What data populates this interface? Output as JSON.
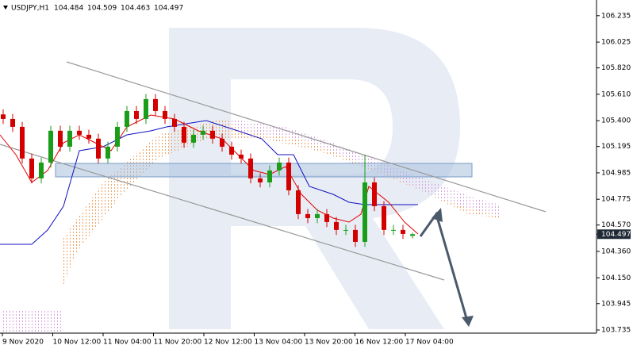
{
  "chart_data": {
    "type": "candlestick",
    "symbol": "USDJPY,H1",
    "open": [
      105.45,
      105.414,
      105.351,
      105.099,
      104.941,
      105.067,
      105.32,
      105.193,
      105.32,
      105.288,
      105.257,
      105.099,
      105.193,
      105.351,
      105.477,
      105.414,
      105.572,
      105.477,
      105.414,
      105.351,
      105.225,
      105.288,
      105.32,
      105.257,
      105.193,
      105.13,
      105.099,
      104.941,
      104.909,
      105.004,
      105.067,
      104.846,
      104.657,
      104.625,
      104.657,
      104.594,
      104.531,
      104.531,
      104.436,
      104.909,
      104.72,
      104.531,
      104.531,
      104.484
    ],
    "high": [
      105.49,
      105.454,
      105.391,
      105.139,
      105.107,
      105.36,
      105.36,
      105.36,
      105.36,
      105.328,
      105.297,
      105.233,
      105.391,
      105.517,
      105.517,
      105.612,
      105.612,
      105.517,
      105.454,
      105.391,
      105.328,
      105.36,
      105.36,
      105.297,
      105.233,
      105.17,
      105.139,
      104.981,
      105.044,
      105.107,
      105.107,
      104.886,
      104.697,
      104.697,
      104.697,
      104.634,
      104.571,
      104.571,
      105.13,
      104.949,
      104.76,
      104.571,
      104.571,
      104.509
    ],
    "low": [
      105.374,
      105.311,
      105.059,
      104.901,
      104.901,
      105.027,
      105.153,
      105.153,
      105.248,
      105.217,
      105.059,
      105.059,
      105.153,
      105.311,
      105.374,
      105.374,
      105.437,
      105.374,
      105.311,
      105.185,
      105.185,
      105.248,
      105.217,
      105.153,
      105.09,
      105.059,
      104.901,
      104.869,
      104.869,
      104.964,
      104.806,
      104.617,
      104.585,
      104.585,
      104.554,
      104.491,
      104.491,
      104.396,
      104.396,
      104.68,
      104.491,
      104.491,
      104.459,
      104.463
    ],
    "close": [
      105.414,
      105.351,
      105.099,
      104.941,
      105.067,
      105.32,
      105.193,
      105.32,
      105.288,
      105.257,
      105.099,
      105.193,
      105.351,
      105.477,
      105.414,
      105.572,
      105.477,
      105.414,
      105.351,
      105.225,
      105.288,
      105.32,
      105.257,
      105.193,
      105.13,
      105.099,
      104.941,
      104.909,
      105.004,
      105.067,
      104.846,
      104.657,
      104.625,
      104.657,
      104.594,
      104.531,
      104.531,
      104.436,
      104.909,
      104.72,
      104.531,
      104.531,
      104.499,
      104.497
    ],
    "x_labels": [
      "9 Nov 2020",
      "10 Nov 12:00",
      "11 Nov 04:00",
      "11 Nov 20:00",
      "12 Nov 12:00",
      "13 Nov 04:00",
      "13 Nov 20:00",
      "16 Nov 12:00",
      "17 Nov 04:00"
    ],
    "ylim": [
      103.71,
      106.36
    ],
    "yticks": [
      106.235,
      106.025,
      {
        "value": 105.82,
        "label": "105.820"
      },
      {
        "value": 105.61,
        "label": "105.610"
      },
      {
        "value": 105.4,
        "label": "105.400"
      },
      105.195,
      104.985,
      104.775,
      {
        "value": 104.57,
        "label": "104.570"
      },
      {
        "value": 104.36,
        "label": "104.360"
      },
      {
        "value": 104.15,
        "label": "104.150"
      },
      103.945,
      103.735
    ],
    "up_color": "#1a9e1a",
    "down_color": "#d40000"
  }
}
